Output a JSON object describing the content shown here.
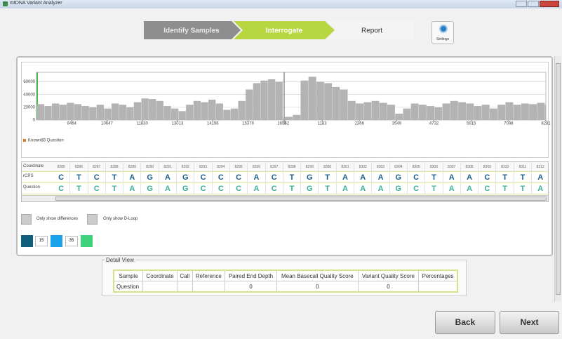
{
  "window": {
    "title": "mtDNA Variant Analyzer"
  },
  "steps": [
    "Identify Samples",
    "Interrogate",
    "Report"
  ],
  "settings": "Settings",
  "chart_data": {
    "type": "bar",
    "legend": "Known88 Question",
    "legend_color": "#e07b20",
    "color": "#b3b3b3",
    "ylim": [
      0,
      75000
    ],
    "yticks": [
      0,
      20000,
      40000,
      60000
    ],
    "grid": true,
    "panels": [
      {
        "xlim": [
          8282,
          16569
        ],
        "xticks": [
          9464,
          10647,
          11830,
          13013,
          14196,
          15379,
          16562
        ],
        "x": [
          8300,
          8550,
          8800,
          9050,
          9300,
          9550,
          9800,
          10050,
          10300,
          10550,
          10800,
          11050,
          11300,
          11550,
          11800,
          12050,
          12300,
          12550,
          12800,
          13050,
          13300,
          13550,
          13800,
          14050,
          14300,
          14550,
          14800,
          15050,
          15300,
          15550,
          15800,
          16050,
          16300,
          16550
        ],
        "values": [
          25000,
          22000,
          26000,
          24000,
          27000,
          25000,
          22000,
          20000,
          24000,
          18000,
          26000,
          24000,
          20000,
          28000,
          34000,
          33000,
          30000,
          22000,
          18000,
          14000,
          24000,
          30000,
          28000,
          32000,
          26000,
          16000,
          18000,
          30000,
          48000,
          58000,
          62000,
          64000,
          60000,
          4000
        ]
      },
      {
        "xlim": [
          0,
          8281
        ],
        "xticks": [
          0,
          1183,
          2366,
          3549,
          4732,
          5915,
          7098,
          8281
        ],
        "x": [
          0,
          250,
          500,
          750,
          1000,
          1250,
          1500,
          1750,
          2000,
          2250,
          2500,
          2750,
          3000,
          3250,
          3500,
          3750,
          4000,
          4250,
          4500,
          4750,
          5000,
          5250,
          5500,
          5750,
          6000,
          6250,
          6500,
          6750,
          7000,
          7250,
          7500,
          7750,
          8000,
          8250
        ],
        "values": [
          5000,
          8000,
          62000,
          68000,
          60000,
          58000,
          52000,
          48000,
          30000,
          26000,
          28000,
          30000,
          27000,
          24000,
          10000,
          18000,
          26000,
          24000,
          22000,
          20000,
          26000,
          30000,
          28000,
          26000,
          22000,
          24000,
          18000,
          24000,
          28000,
          24000,
          26000,
          25000,
          27000,
          24000
        ]
      }
    ]
  },
  "sequence": {
    "row_labels": [
      "Coordinate",
      "rCRS",
      "Question"
    ],
    "coordinates": [
      8285,
      8286,
      8287,
      8288,
      8289,
      8290,
      8291,
      8292,
      8293,
      8294,
      8295,
      8296,
      8297,
      8298,
      8299,
      8300,
      8301,
      8302,
      8303,
      8304,
      8305,
      8306,
      8307,
      8308,
      8309,
      8310,
      8311,
      8312
    ],
    "reference": [
      "C",
      "T",
      "C",
      "T",
      "A",
      "G",
      "A",
      "G",
      "C",
      "C",
      "C",
      "A",
      "C",
      "T",
      "G",
      "T",
      "A",
      "A",
      "A",
      "G",
      "C",
      "T",
      "A",
      "A",
      "C",
      "T",
      "T",
      "A"
    ],
    "query": [
      "C",
      "T",
      "C",
      "T",
      "A",
      "G",
      "A",
      "G",
      "C",
      "C",
      "C",
      "A",
      "C",
      "T",
      "G",
      "T",
      "A",
      "A",
      "A",
      "G",
      "C",
      "T",
      "A",
      "A",
      "C",
      "T",
      "T",
      "A"
    ]
  },
  "filters": [
    "Only show differences",
    "Only show D-Loop"
  ],
  "thresholds": [
    15,
    35
  ],
  "detail": {
    "title": "Detail View",
    "headers": [
      "Sample",
      "Coordinate",
      "Call",
      "Reference",
      "Paired End Depth",
      "Mean Basecall Quality Score",
      "Variant Quality Score",
      "Percentages"
    ],
    "row": {
      "sample": "Question",
      "paired_end_depth": 0,
      "mean_basecall_quality": 0,
      "variant_quality": 0
    }
  },
  "buttons": [
    "Back",
    "Next"
  ]
}
